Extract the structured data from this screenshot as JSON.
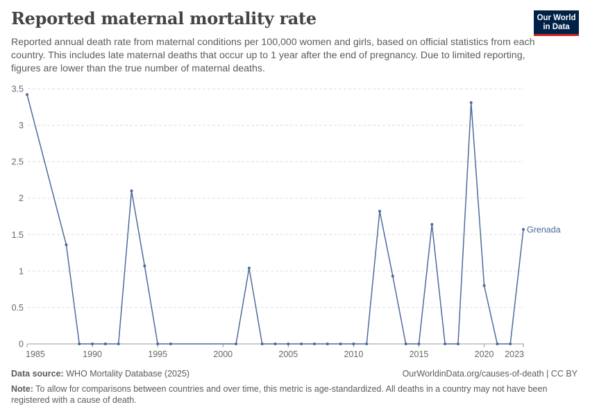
{
  "header": {
    "title": "Reported maternal mortality rate",
    "subtitle": "Reported annual death rate from maternal conditions per 100,000 women and girls, based on official statistics from each country. This includes late maternal deaths that occur up to 1 year after the end of pregnancy. Due to limited reporting, figures are lower than the true number of maternal deaths."
  },
  "logo": {
    "line1": "Our World",
    "line2": "in Data"
  },
  "footer": {
    "source_label": "Data source:",
    "source_text": "WHO Mortality Database (2025)",
    "url": "OurWorldinData.org/causes-of-death | CC BY",
    "note_label": "Note:",
    "note_text": "To allow for comparisons between countries and over time, this metric is age-standardized. All deaths in a country may not have been registered with a cause of death."
  },
  "colors": {
    "series": "#4c6a9c",
    "grid": "#dddddd",
    "axis": "#999999",
    "brand": "#002147",
    "brand_accent": "#ce261e"
  },
  "chart_data": {
    "type": "line",
    "title": "Reported maternal mortality rate",
    "xlabel": "",
    "ylabel": "",
    "xlim": [
      1985,
      2023
    ],
    "ylim": [
      0,
      3.5
    ],
    "x_ticks": [
      1985,
      1990,
      1995,
      2000,
      2005,
      2010,
      2015,
      2020,
      2023
    ],
    "y_ticks": [
      0,
      0.5,
      1,
      1.5,
      2,
      2.5,
      3,
      3.5
    ],
    "y_tick_labels": [
      "0",
      "0.5",
      "1",
      "1.5",
      "2",
      "2.5",
      "3",
      "3.5"
    ],
    "grid": "horizontal dashed",
    "series": [
      {
        "name": "Grenada",
        "color": "#4c6a9c",
        "x": [
          1985,
          1988,
          1989,
          1990,
          1991,
          1992,
          1993,
          1994,
          1995,
          1996,
          2001,
          2002,
          2003,
          2004,
          2005,
          2006,
          2007,
          2008,
          2009,
          2010,
          2011,
          2012,
          2013,
          2014,
          2015,
          2016,
          2017,
          2018,
          2019,
          2020,
          2021,
          2022,
          2023
        ],
        "y": [
          3.42,
          1.36,
          0,
          0,
          0,
          0,
          2.1,
          1.07,
          0,
          0,
          0,
          1.04,
          0,
          0,
          0,
          0,
          0,
          0,
          0,
          0,
          0,
          1.82,
          0.93,
          0,
          0,
          1.64,
          0,
          0,
          3.31,
          0.8,
          0,
          0,
          1.57
        ]
      }
    ]
  }
}
